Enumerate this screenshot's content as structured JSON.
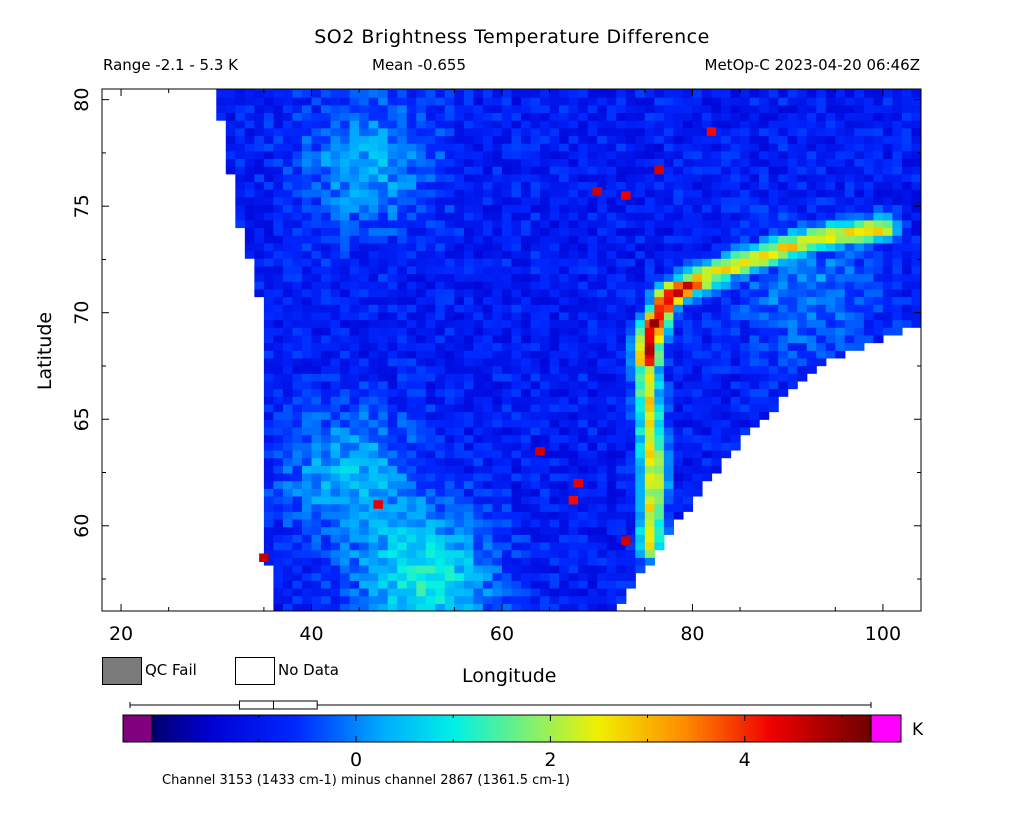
{
  "chart_data": {
    "type": "heatmap",
    "title": "SO2 Brightness Temperature Difference",
    "subtitle_range": "Range -2.1 - 5.3 K",
    "subtitle_mean": "Mean -0.655",
    "subtitle_satellite": "MetOp-C 2023-04-20 06:46Z",
    "xlabel": "Longitude",
    "ylabel": "Latitude",
    "xlim": [
      18,
      104
    ],
    "ylim": [
      56,
      80.5
    ],
    "xticks": [
      20,
      40,
      60,
      80,
      100
    ],
    "xtick_labels": [
      "20",
      "40",
      "60",
      "80",
      "100"
    ],
    "yticks": [
      60,
      65,
      70,
      75,
      80
    ],
    "ytick_labels": [
      "60",
      "65",
      "70",
      "75",
      "80"
    ],
    "swath": {
      "west_edge": [
        [
          36,
          56
        ],
        [
          35,
          60
        ],
        [
          35,
          65
        ],
        [
          35,
          70
        ],
        [
          32,
          75
        ],
        [
          30,
          80.5
        ]
      ],
      "east_edge": [
        [
          72,
          56
        ],
        [
          78,
          60
        ],
        [
          85,
          64
        ],
        [
          93,
          67.5
        ],
        [
          104,
          69.5
        ]
      ]
    },
    "plume_ridge": [
      [
        75.5,
        59
      ],
      [
        76,
        62
      ],
      [
        75.5,
        65
      ],
      [
        75.2,
        67
      ],
      [
        75.3,
        68.3
      ],
      [
        76,
        69.5
      ],
      [
        77.5,
        70.8
      ],
      [
        80,
        71.5
      ],
      [
        84,
        72.2
      ],
      [
        88,
        72.8
      ],
      [
        93,
        73.5
      ],
      [
        100,
        74
      ]
    ],
    "hot_pixels": [
      [
        70,
        75.7,
        4.5
      ],
      [
        73,
        75.5,
        4.3
      ],
      [
        76.5,
        76.7,
        4.5
      ],
      [
        82,
        78.5,
        4.2
      ],
      [
        64,
        63.5,
        4.5
      ],
      [
        68,
        62.0,
        4.3
      ],
      [
        67.5,
        61.2,
        4.2
      ],
      [
        73,
        59.3,
        4.5
      ],
      [
        47,
        61.0,
        4.3
      ],
      [
        35,
        58.5,
        4.6
      ],
      [
        76,
        69.5,
        5.0
      ],
      [
        75.5,
        68.2,
        4.8
      ]
    ],
    "background_regions": [
      {
        "lon": 52,
        "lat": 57.5,
        "value": 1.0
      },
      {
        "lon": 44,
        "lat": 62.5,
        "value": 0.4
      },
      {
        "lon": 46,
        "lat": 77,
        "value": 0.3
      },
      {
        "lon": 63,
        "lat": 76,
        "value": -0.9
      },
      {
        "lon": 92,
        "lat": 71,
        "value": 0.0
      }
    ],
    "legend": {
      "qc_fail_label": "QC Fail",
      "qc_fail_color": "#7a7a7a",
      "no_data_label": "No Data",
      "no_data_color": "#ffffff"
    },
    "colorbar": {
      "vmin": -2.1,
      "vmax": 5.3,
      "ticks": [
        0,
        2,
        4
      ],
      "tick_labels": [
        "0",
        "2",
        "4"
      ],
      "unit": "K",
      "under_color": "#800080",
      "over_color": "#ff00ff",
      "boxplot": {
        "min": -2.1,
        "q1": -1.2,
        "median": -0.85,
        "q3": -0.4,
        "max": 5.3
      }
    },
    "footnote": "Channel 3153 (1433 cm-1) minus channel 2867 (1361.5 cm-1)"
  }
}
